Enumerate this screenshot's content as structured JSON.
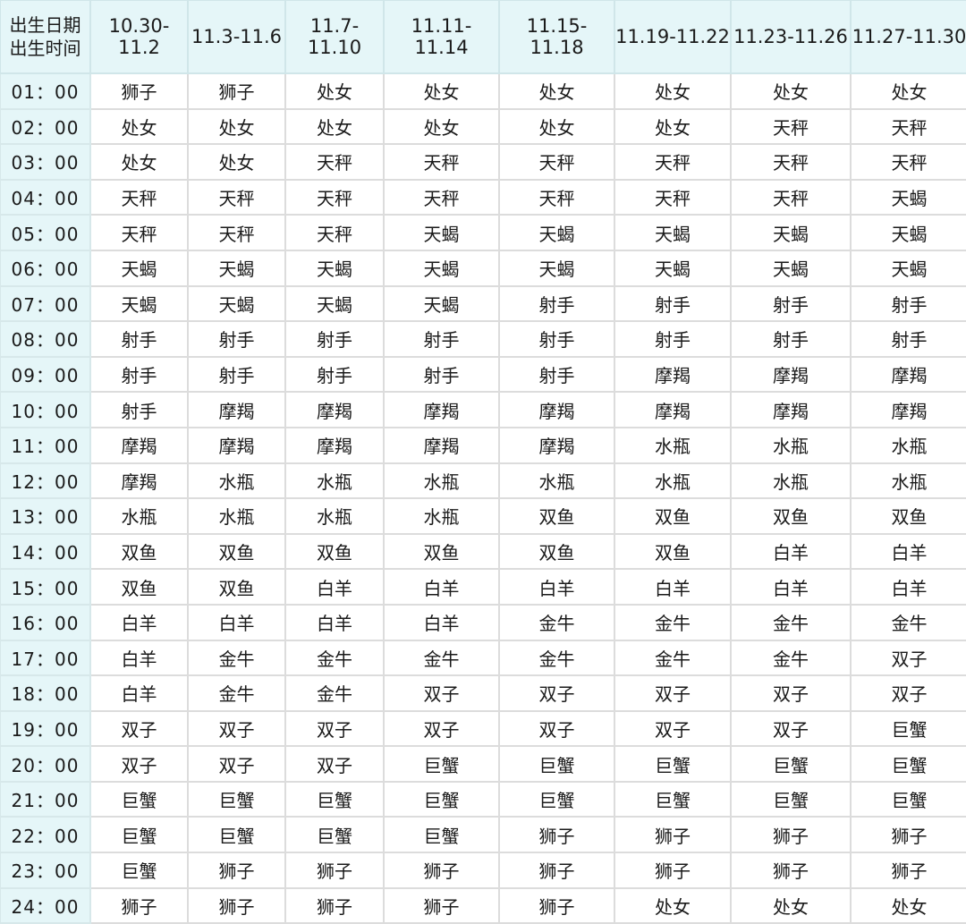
{
  "table": {
    "corner": {
      "line1": "出生日期",
      "line2": "出生时间"
    },
    "columns": [
      "10.30-11.2",
      "11.3-11.6",
      "11.7-11.10",
      "11.11-11.14",
      "11.15-11.18",
      "11.19-11.22",
      "11.23-11.26",
      "11.27-11.30"
    ],
    "rows": [
      {
        "time": "01：00",
        "cells": [
          "狮子",
          "狮子",
          "处女",
          "处女",
          "处女",
          "处女",
          "处女",
          "处女"
        ]
      },
      {
        "time": "02：00",
        "cells": [
          "处女",
          "处女",
          "处女",
          "处女",
          "处女",
          "处女",
          "天秤",
          "天秤"
        ]
      },
      {
        "time": "03：00",
        "cells": [
          "处女",
          "处女",
          "天秤",
          "天秤",
          "天秤",
          "天秤",
          "天秤",
          "天秤"
        ]
      },
      {
        "time": "04：00",
        "cells": [
          "天秤",
          "天秤",
          "天秤",
          "天秤",
          "天秤",
          "天秤",
          "天秤",
          "天蝎"
        ]
      },
      {
        "time": "05：00",
        "cells": [
          "天秤",
          "天秤",
          "天秤",
          "天蝎",
          "天蝎",
          "天蝎",
          "天蝎",
          "天蝎"
        ]
      },
      {
        "time": "06：00",
        "cells": [
          "天蝎",
          "天蝎",
          "天蝎",
          "天蝎",
          "天蝎",
          "天蝎",
          "天蝎",
          "天蝎"
        ]
      },
      {
        "time": "07：00",
        "cells": [
          "天蝎",
          "天蝎",
          "天蝎",
          "天蝎",
          "射手",
          "射手",
          "射手",
          "射手"
        ]
      },
      {
        "time": "08：00",
        "cells": [
          "射手",
          "射手",
          "射手",
          "射手",
          "射手",
          "射手",
          "射手",
          "射手"
        ]
      },
      {
        "time": "09：00",
        "cells": [
          "射手",
          "射手",
          "射手",
          "射手",
          "射手",
          "摩羯",
          "摩羯",
          "摩羯"
        ]
      },
      {
        "time": "10：00",
        "cells": [
          "射手",
          "摩羯",
          "摩羯",
          "摩羯",
          "摩羯",
          "摩羯",
          "摩羯",
          "摩羯"
        ]
      },
      {
        "time": "11：00",
        "cells": [
          "摩羯",
          "摩羯",
          "摩羯",
          "摩羯",
          "摩羯",
          "水瓶",
          "水瓶",
          "水瓶"
        ]
      },
      {
        "time": "12：00",
        "cells": [
          "摩羯",
          "水瓶",
          "水瓶",
          "水瓶",
          "水瓶",
          "水瓶",
          "水瓶",
          "水瓶"
        ]
      },
      {
        "time": "13：00",
        "cells": [
          "水瓶",
          "水瓶",
          "水瓶",
          "水瓶",
          "双鱼",
          "双鱼",
          "双鱼",
          "双鱼"
        ]
      },
      {
        "time": "14：00",
        "cells": [
          "双鱼",
          "双鱼",
          "双鱼",
          "双鱼",
          "双鱼",
          "双鱼",
          "白羊",
          "白羊"
        ]
      },
      {
        "time": "15：00",
        "cells": [
          "双鱼",
          "双鱼",
          "白羊",
          "白羊",
          "白羊",
          "白羊",
          "白羊",
          "白羊"
        ]
      },
      {
        "time": "16：00",
        "cells": [
          "白羊",
          "白羊",
          "白羊",
          "白羊",
          "金牛",
          "金牛",
          "金牛",
          "金牛"
        ]
      },
      {
        "time": "17：00",
        "cells": [
          "白羊",
          "金牛",
          "金牛",
          "金牛",
          "金牛",
          "金牛",
          "金牛",
          "双子"
        ]
      },
      {
        "time": "18：00",
        "cells": [
          "白羊",
          "金牛",
          "金牛",
          "双子",
          "双子",
          "双子",
          "双子",
          "双子"
        ]
      },
      {
        "time": "19：00",
        "cells": [
          "双子",
          "双子",
          "双子",
          "双子",
          "双子",
          "双子",
          "双子",
          "巨蟹"
        ]
      },
      {
        "time": "20：00",
        "cells": [
          "双子",
          "双子",
          "双子",
          "巨蟹",
          "巨蟹",
          "巨蟹",
          "巨蟹",
          "巨蟹"
        ]
      },
      {
        "time": "21：00",
        "cells": [
          "巨蟹",
          "巨蟹",
          "巨蟹",
          "巨蟹",
          "巨蟹",
          "巨蟹",
          "巨蟹",
          "巨蟹"
        ]
      },
      {
        "time": "22：00",
        "cells": [
          "巨蟹",
          "巨蟹",
          "巨蟹",
          "巨蟹",
          "狮子",
          "狮子",
          "狮子",
          "狮子"
        ]
      },
      {
        "time": "23：00",
        "cells": [
          "巨蟹",
          "狮子",
          "狮子",
          "狮子",
          "狮子",
          "狮子",
          "狮子",
          "狮子"
        ]
      },
      {
        "time": "24：00",
        "cells": [
          "狮子",
          "狮子",
          "狮子",
          "狮子",
          "狮子",
          "处女",
          "处女",
          "处女"
        ]
      }
    ]
  },
  "colors": {
    "header_bg": "#e5f6f8",
    "grid": "#dcdcdc"
  }
}
